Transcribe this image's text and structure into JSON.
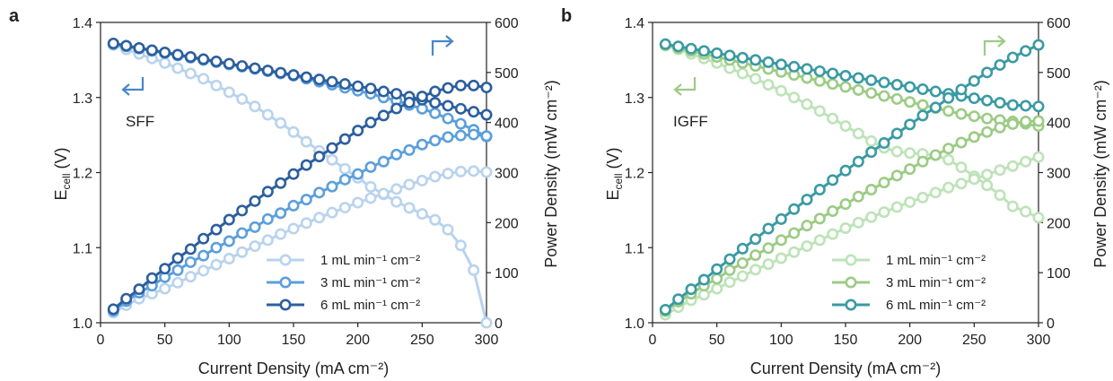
{
  "chart_data": [
    {
      "panel": "a",
      "type": "line",
      "xlabel": "Current Density (mA cm⁻²)",
      "ylabel_left": "E_cell (V)",
      "ylabel_right": "Power Density (mW cm⁻²)",
      "xlim": [
        0,
        300
      ],
      "ylim_left": [
        1.0,
        1.4
      ],
      "ylim_right": [
        0,
        600
      ],
      "x_ticks": [
        "0",
        "50",
        "100",
        "150",
        "200",
        "250",
        "300"
      ],
      "y_left_ticks": [
        "1.0",
        "1.1",
        "1.2",
        "1.3",
        "1.4"
      ],
      "y_right_ticks": [
        "0",
        "100",
        "200",
        "300",
        "400",
        "500",
        "600"
      ],
      "annotation": "SFF",
      "annotation_color": "#4a86c8",
      "legend": [
        "1 mL min⁻¹ cm⁻²",
        "3 mL min⁻¹ cm⁻²",
        "6 mL min⁻¹ cm⁻²"
      ],
      "x": [
        10,
        20,
        30,
        40,
        50,
        60,
        70,
        80,
        90,
        100,
        110,
        120,
        130,
        140,
        150,
        160,
        170,
        180,
        190,
        200,
        210,
        220,
        230,
        240,
        250,
        260,
        270,
        280,
        290,
        300
      ],
      "series": [
        {
          "name": "1 mL min⁻¹ cm⁻²",
          "color": "#b9d3ee",
          "voltage": [
            1.37,
            1.364,
            1.358,
            1.352,
            1.346,
            1.339,
            1.332,
            1.325,
            1.316,
            1.307,
            1.298,
            1.288,
            1.277,
            1.266,
            1.254,
            1.241,
            1.229,
            1.217,
            1.205,
            1.193,
            1.181,
            1.171,
            1.161,
            1.153,
            1.145,
            1.137,
            1.124,
            1.103,
            1.07,
            1.0
          ],
          "power": [
            20,
            35,
            48,
            58,
            68,
            80,
            92,
            104,
            116,
            128,
            141,
            153,
            165,
            177,
            188,
            199,
            210,
            220,
            230,
            240,
            249,
            258,
            267,
            276,
            284,
            292,
            298,
            302,
            303,
            301
          ]
        },
        {
          "name": "3 mL min⁻¹ cm⁻²",
          "color": "#5c9fdb",
          "voltage": [
            1.371,
            1.368,
            1.365,
            1.362,
            1.359,
            1.356,
            1.353,
            1.35,
            1.347,
            1.344,
            1.341,
            1.338,
            1.335,
            1.332,
            1.329,
            1.325,
            1.321,
            1.317,
            1.313,
            1.309,
            1.305,
            1.3,
            1.296,
            1.29,
            1.285,
            1.279,
            1.272,
            1.265,
            1.257,
            1.248
          ],
          "power": [
            24,
            43,
            60,
            74,
            91,
            105,
            121,
            134,
            150,
            163,
            179,
            191,
            207,
            219,
            234,
            246,
            260,
            272,
            286,
            297,
            311,
            322,
            336,
            345,
            356,
            364,
            371,
            374,
            376,
            373
          ]
        },
        {
          "name": "6 mL min⁻¹ cm⁻²",
          "color": "#2c5f9e",
          "voltage": [
            1.372,
            1.369,
            1.366,
            1.363,
            1.36,
            1.357,
            1.354,
            1.351,
            1.348,
            1.345,
            1.342,
            1.339,
            1.336,
            1.333,
            1.33,
            1.327,
            1.324,
            1.321,
            1.318,
            1.315,
            1.312,
            1.308,
            1.305,
            1.301,
            1.297,
            1.293,
            1.289,
            1.285,
            1.281,
            1.277
          ],
          "power": [
            27,
            48,
            67,
            89,
            108,
            129,
            147,
            168,
            186,
            206,
            224,
            243,
            262,
            279,
            297,
            315,
            332,
            349,
            367,
            384,
            400,
            414,
            428,
            440,
            452,
            462,
            469,
            474,
            474,
            470
          ]
        }
      ]
    },
    {
      "panel": "b",
      "type": "line",
      "xlabel": "Current Density (mA cm⁻²)",
      "ylabel_left": "E_cell (V)",
      "ylabel_right": "Power Density (mW cm⁻²)",
      "xlim": [
        0,
        300
      ],
      "ylim_left": [
        1.0,
        1.4
      ],
      "ylim_right": [
        0,
        600
      ],
      "x_ticks": [
        "0",
        "50",
        "100",
        "150",
        "200",
        "250",
        "300"
      ],
      "y_left_ticks": [
        "1.0",
        "1.1",
        "1.2",
        "1.3",
        "1.4"
      ],
      "y_right_ticks": [
        "0",
        "100",
        "200",
        "300",
        "400",
        "500",
        "600"
      ],
      "annotation": "IGFF",
      "annotation_color": "#9ccb85",
      "legend": [
        "1 mL min⁻¹ cm⁻²",
        "3 mL min⁻¹ cm⁻²",
        "6 mL min⁻¹ cm⁻²"
      ],
      "x": [
        10,
        20,
        30,
        40,
        50,
        60,
        70,
        80,
        90,
        100,
        110,
        120,
        130,
        140,
        150,
        160,
        170,
        180,
        190,
        200,
        210,
        220,
        230,
        240,
        250,
        260,
        270,
        280,
        290,
        300
      ],
      "series": [
        {
          "name": "1 mL min⁻¹ cm⁻²",
          "color": "#bde3b8",
          "voltage": [
            1.369,
            1.364,
            1.358,
            1.352,
            1.346,
            1.339,
            1.332,
            1.325,
            1.317,
            1.309,
            1.3,
            1.291,
            1.282,
            1.272,
            1.262,
            1.252,
            1.242,
            1.233,
            1.228,
            1.226,
            1.225,
            1.223,
            1.217,
            1.207,
            1.195,
            1.183,
            1.17,
            1.155,
            1.148,
            1.14
          ],
          "power": [
            16,
            31,
            45,
            56,
            68,
            81,
            93,
            106,
            117,
            129,
            141,
            153,
            165,
            177,
            189,
            200,
            211,
            221,
            231,
            241,
            250,
            260,
            270,
            278,
            287,
            296,
            305,
            313,
            322,
            331
          ]
        },
        {
          "name": "3 mL min⁻¹ cm⁻²",
          "color": "#9ccb85",
          "voltage": [
            1.37,
            1.366,
            1.362,
            1.358,
            1.354,
            1.35,
            1.346,
            1.342,
            1.338,
            1.334,
            1.33,
            1.326,
            1.322,
            1.318,
            1.314,
            1.31,
            1.306,
            1.302,
            1.298,
            1.294,
            1.29,
            1.286,
            1.282,
            1.278,
            1.275,
            1.272,
            1.27,
            1.268,
            1.265,
            1.262
          ],
          "power": [
            23,
            42,
            58,
            74,
            88,
            105,
            119,
            135,
            149,
            165,
            179,
            194,
            208,
            223,
            237,
            252,
            266,
            280,
            294,
            307,
            322,
            335,
            348,
            360,
            371,
            381,
            390,
            397,
            402,
            403
          ]
        },
        {
          "name": "6 mL min⁻¹ cm⁻²",
          "color": "#3a9aa3",
          "voltage": [
            1.371,
            1.368,
            1.365,
            1.362,
            1.359,
            1.356,
            1.353,
            1.35,
            1.347,
            1.344,
            1.341,
            1.338,
            1.335,
            1.332,
            1.329,
            1.326,
            1.323,
            1.32,
            1.317,
            1.314,
            1.311,
            1.308,
            1.305,
            1.302,
            1.299,
            1.296,
            1.293,
            1.29,
            1.289,
            1.288
          ],
          "power": [
            26,
            47,
            67,
            86,
            107,
            127,
            148,
            167,
            188,
            207,
            227,
            246,
            266,
            285,
            304,
            322,
            341,
            359,
            378,
            396,
            414,
            430,
            449,
            466,
            483,
            500,
            515,
            530,
            543,
            555
          ]
        }
      ]
    }
  ]
}
